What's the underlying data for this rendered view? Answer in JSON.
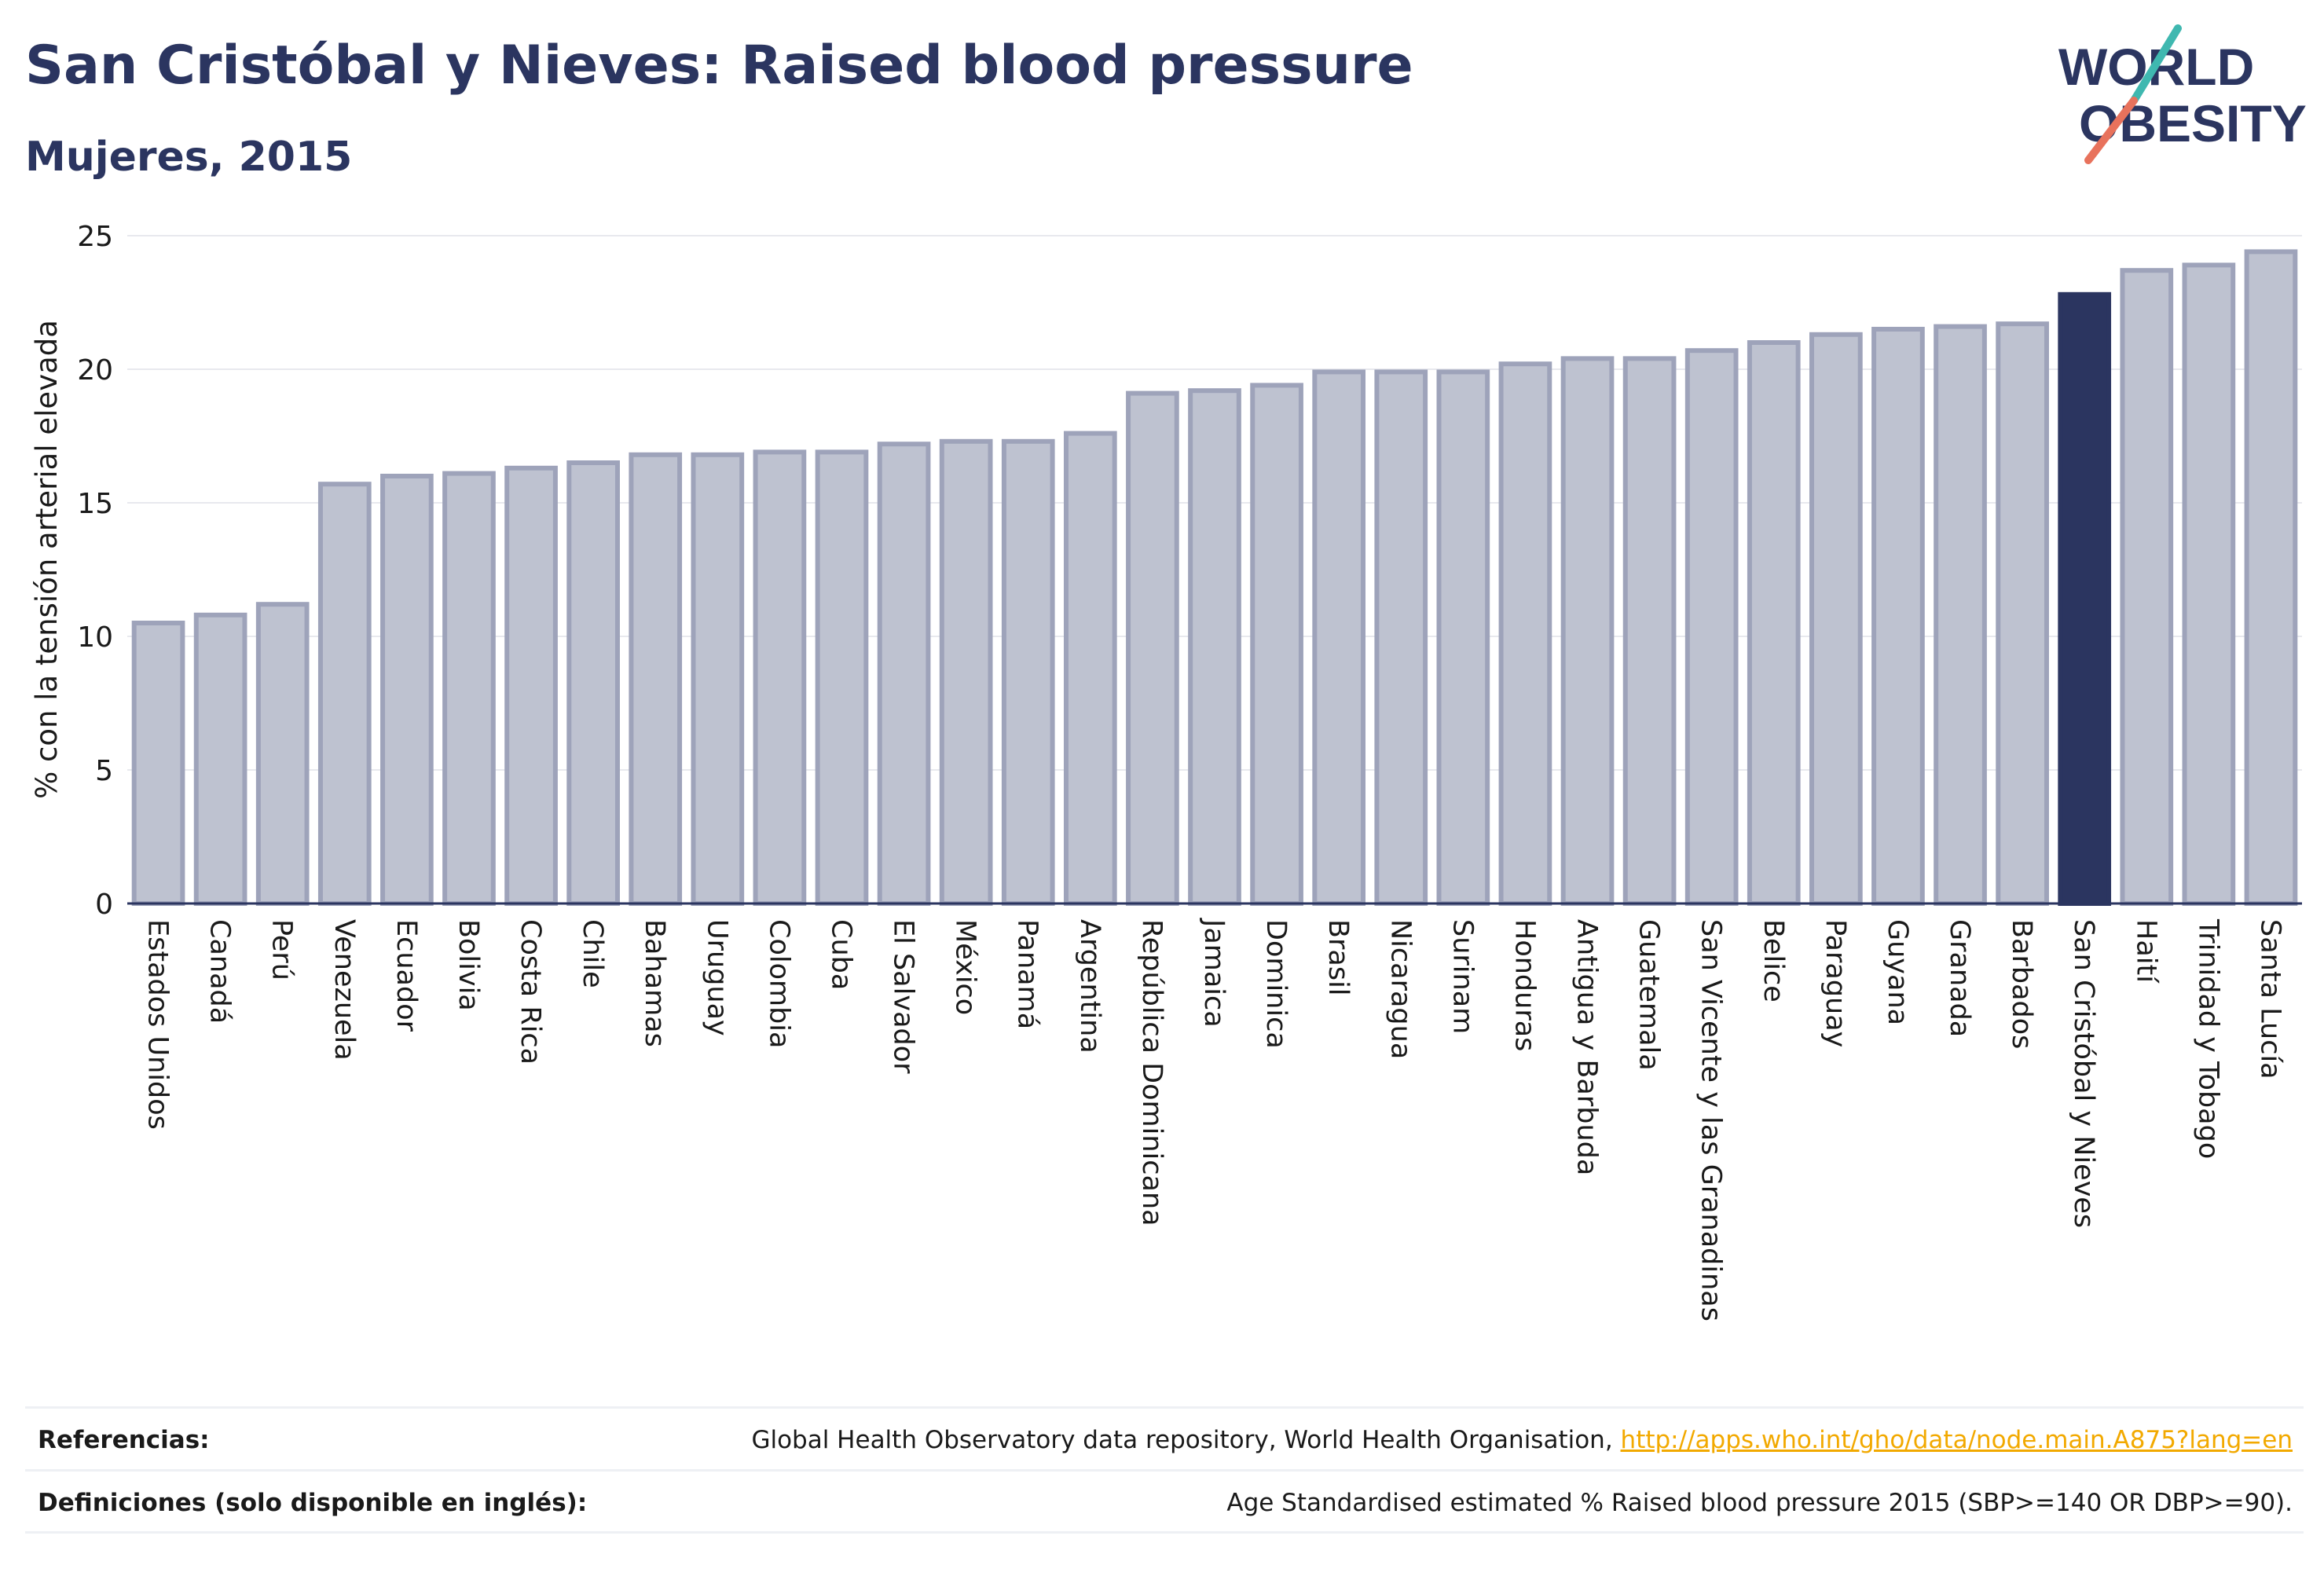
{
  "header": {
    "title": "San Cristóbal y Nieves: Raised blood pressure",
    "subtitle": "Mujeres, 2015"
  },
  "logo": {
    "line1": "WORLD",
    "line2": "OBESITY",
    "brand_colors": [
      "#2b3560",
      "#3fb8b0",
      "#e8725c"
    ]
  },
  "chart_data": {
    "type": "bar",
    "ylabel": "% con la tensión arterial elevada",
    "ylim": [
      0,
      25
    ],
    "yticks": [
      0,
      5,
      10,
      15,
      20,
      25
    ],
    "grid": true,
    "highlight": "San Cristóbal y Nieves",
    "colors": {
      "bar": "#bec2d0",
      "bar_stroke": "#9ea3ba",
      "highlight": "#2b3560",
      "grid": "#e8e9ee"
    },
    "categories": [
      "Estados Unidos",
      "Canadá",
      "Perú",
      "Venezuela",
      "Ecuador",
      "Bolivia",
      "Costa Rica",
      "Chile",
      "Bahamas",
      "Uruguay",
      "Colombia",
      "Cuba",
      "El Salvador",
      "México",
      "Panamá",
      "Argentina",
      "República Dominicana",
      "Jamaica",
      "Dominica",
      "Brasil",
      "Nicaragua",
      "Surinam",
      "Honduras",
      "Antigua y Barbuda",
      "Guatemala",
      "San Vicente y las Granadinas",
      "Belice",
      "Paraguay",
      "Guyana",
      "Granada",
      "Barbados",
      "San Cristóbal y Nieves",
      "Haití",
      "Trinidad y Tobago",
      "Santa Lucía"
    ],
    "values": [
      10.5,
      10.8,
      11.2,
      15.7,
      16.0,
      16.1,
      16.3,
      16.5,
      16.8,
      16.8,
      16.9,
      16.9,
      17.2,
      17.3,
      17.3,
      17.6,
      19.1,
      19.2,
      19.4,
      19.9,
      19.9,
      19.9,
      20.2,
      20.4,
      20.4,
      20.7,
      21.0,
      21.3,
      21.5,
      21.6,
      21.7,
      22.8,
      23.7,
      23.9,
      24.4
    ]
  },
  "footer": {
    "references_label": "Referencias:",
    "references_text": "Global Health Observatory data repository, World Health Organisation, ",
    "references_link": "http://apps.who.int/gho/data/node.main.A875?lang=en",
    "definitions_label": "Definiciones (solo disponible en inglés):",
    "definitions_text": "Age Standardised estimated % Raised blood pressure 2015 (SBP>=140 OR DBP>=90)."
  }
}
